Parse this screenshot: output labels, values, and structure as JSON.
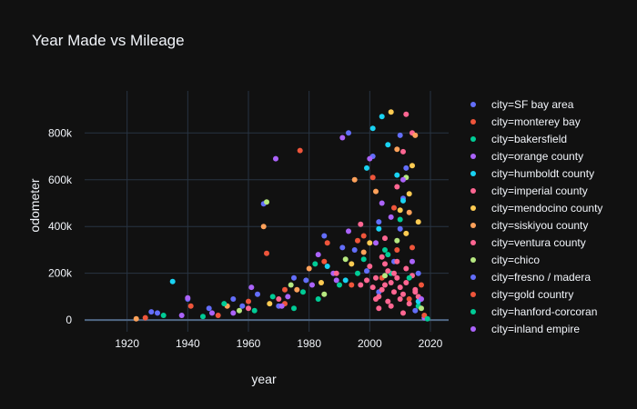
{
  "chart_data": {
    "type": "scatter",
    "title": "Year Made vs Mileage",
    "xlabel": "year",
    "ylabel": "odometer",
    "xlim": [
      1906,
      2026
    ],
    "ylim": [
      -50000,
      980000
    ],
    "x_ticks": [
      1920,
      1940,
      1960,
      1980,
      2000,
      2020
    ],
    "x_tick_labels": [
      "1920",
      "1940",
      "1960",
      "1980",
      "2000",
      "2020"
    ],
    "y_ticks": [
      0,
      200000,
      400000,
      600000,
      800000
    ],
    "y_tick_labels": [
      "0",
      "200k",
      "400k",
      "600k",
      "800k"
    ],
    "grid": true,
    "legend_position": "right",
    "series": [
      {
        "name": "city=SF bay area",
        "color": "#636efa",
        "points": [
          [
            1965,
            497000
          ],
          [
            1993,
            800000
          ],
          [
            2001,
            700000
          ],
          [
            2010,
            790000
          ],
          [
            2012,
            650000
          ],
          [
            1985,
            360000
          ],
          [
            1975,
            180000
          ],
          [
            1958,
            60000
          ],
          [
            2008,
            250000
          ],
          [
            2003,
            120000
          ],
          [
            2015,
            40000
          ],
          [
            1995,
            300000
          ],
          [
            1940,
            90000
          ],
          [
            1930,
            30000
          ],
          [
            1999,
            210000
          ],
          [
            2011,
            520000
          ]
        ]
      },
      {
        "name": "city=monterey bay",
        "color": "#EF553B",
        "points": [
          [
            1977,
            725000
          ],
          [
            1966,
            285000
          ],
          [
            1985,
            250000
          ],
          [
            2001,
            610000
          ],
          [
            2004,
            180000
          ],
          [
            2013,
            90000
          ],
          [
            1972,
            70000
          ],
          [
            1996,
            340000
          ],
          [
            2009,
            300000
          ],
          [
            1950,
            20000
          ],
          [
            2017,
            150000
          ]
        ]
      },
      {
        "name": "city=bakersfield",
        "color": "#00cc96",
        "points": [
          [
            2005,
            300000
          ],
          [
            1990,
            150000
          ],
          [
            1962,
            40000
          ],
          [
            2010,
            430000
          ],
          [
            1978,
            120000
          ],
          [
            1945,
            15000
          ],
          [
            2016,
            60000
          ],
          [
            1998,
            260000
          ],
          [
            2007,
            200000
          ],
          [
            1983,
            90000
          ]
        ]
      },
      {
        "name": "city=orange county",
        "color": "#ab63fa",
        "points": [
          [
            1969,
            690000
          ],
          [
            1991,
            780000
          ],
          [
            2000,
            690000
          ],
          [
            2007,
            440000
          ],
          [
            1988,
            200000
          ],
          [
            1973,
            100000
          ],
          [
            1955,
            30000
          ],
          [
            2014,
            250000
          ],
          [
            2002,
            330000
          ],
          [
            1981,
            150000
          ],
          [
            1938,
            20000
          ],
          [
            2018,
            10000
          ]
        ]
      },
      {
        "name": "city=humboldt county",
        "color": "#19d3f3",
        "points": [
          [
            2004,
            870000
          ],
          [
            2006,
            750000
          ],
          [
            2001,
            820000
          ],
          [
            1999,
            650000
          ],
          [
            2011,
            510000
          ],
          [
            1935,
            165000
          ],
          [
            1986,
            230000
          ],
          [
            2009,
            620000
          ],
          [
            2003,
            390000
          ],
          [
            1992,
            170000
          ],
          [
            2016,
            80000
          ]
        ]
      },
      {
        "name": "city=imperial county",
        "color": "#FF6692",
        "points": [
          [
            2012,
            880000
          ],
          [
            2014,
            800000
          ],
          [
            2009,
            570000
          ],
          [
            1997,
            410000
          ],
          [
            2005,
            350000
          ],
          [
            1970,
            90000
          ],
          [
            1960,
            50000
          ],
          [
            2011,
            720000
          ],
          [
            1989,
            200000
          ],
          [
            2015,
            130000
          ]
        ]
      },
      {
        "name": "city=mendocino county",
        "color": "#FECB52",
        "points": [
          [
            2007,
            890000
          ],
          [
            2014,
            660000
          ],
          [
            2013,
            540000
          ],
          [
            2010,
            470000
          ],
          [
            2000,
            330000
          ],
          [
            1984,
            160000
          ],
          [
            1967,
            70000
          ],
          [
            2016,
            420000
          ],
          [
            1994,
            240000
          ],
          [
            2012,
            370000
          ]
        ]
      },
      {
        "name": "city=siskiyou county",
        "color": "#FFA15A",
        "points": [
          [
            1923,
            5000
          ],
          [
            1995,
            600000
          ],
          [
            2015,
            790000
          ],
          [
            1965,
            400000
          ],
          [
            2009,
            730000
          ],
          [
            2002,
            550000
          ],
          [
            1980,
            220000
          ],
          [
            1976,
            130000
          ],
          [
            1953,
            60000
          ],
          [
            2013,
            460000
          ],
          [
            1998,
            290000
          ]
        ]
      },
      {
        "name": "city=ventura county",
        "color": "#FF6692",
        "points": [
          [
            2005,
            150000
          ],
          [
            2008,
            120000
          ],
          [
            2002,
            180000
          ],
          [
            2010,
            90000
          ],
          [
            2006,
            210000
          ],
          [
            2003,
            100000
          ],
          [
            2012,
            160000
          ],
          [
            2000,
            230000
          ],
          [
            2007,
            60000
          ],
          [
            2009,
            250000
          ],
          [
            2004,
            130000
          ],
          [
            2011,
            110000
          ],
          [
            1999,
            170000
          ],
          [
            2013,
            70000
          ],
          [
            2001,
            140000
          ],
          [
            2014,
            190000
          ],
          [
            2006,
            80000
          ],
          [
            2008,
            200000
          ],
          [
            2005,
            240000
          ],
          [
            2010,
            140000
          ],
          [
            2003,
            50000
          ],
          [
            2012,
            220000
          ],
          [
            2002,
            90000
          ],
          [
            2015,
            120000
          ],
          [
            1997,
            150000
          ],
          [
            2009,
            180000
          ],
          [
            2004,
            270000
          ],
          [
            2011,
            30000
          ],
          [
            2007,
            160000
          ],
          [
            2016,
            100000
          ]
        ]
      },
      {
        "name": "city=chico",
        "color": "#B6E880",
        "points": [
          [
            1966,
            505000
          ],
          [
            2012,
            610000
          ],
          [
            1974,
            150000
          ],
          [
            1992,
            260000
          ],
          [
            2005,
            190000
          ],
          [
            1957,
            40000
          ],
          [
            2009,
            340000
          ],
          [
            1985,
            110000
          ],
          [
            2017,
            50000
          ]
        ]
      },
      {
        "name": "city=fresno / madera",
        "color": "#636efa",
        "points": [
          [
            1928,
            35000
          ],
          [
            1947,
            50000
          ],
          [
            1963,
            110000
          ],
          [
            1979,
            170000
          ],
          [
            1991,
            310000
          ],
          [
            2003,
            420000
          ],
          [
            2010,
            390000
          ],
          [
            2016,
            200000
          ],
          [
            1970,
            60000
          ],
          [
            1955,
            90000
          ]
        ]
      },
      {
        "name": "city=gold country",
        "color": "#EF553B",
        "points": [
          [
            1926,
            10000
          ],
          [
            1941,
            60000
          ],
          [
            1972,
            130000
          ],
          [
            1986,
            330000
          ],
          [
            1998,
            360000
          ],
          [
            2008,
            480000
          ],
          [
            2014,
            310000
          ],
          [
            1960,
            80000
          ],
          [
            1994,
            150000
          ],
          [
            2018,
            20000
          ]
        ]
      },
      {
        "name": "city=hanford-corcoran",
        "color": "#00cc96",
        "points": [
          [
            1932,
            20000
          ],
          [
            1952,
            70000
          ],
          [
            1968,
            100000
          ],
          [
            1982,
            240000
          ],
          [
            1996,
            200000
          ],
          [
            2006,
            280000
          ],
          [
            2013,
            180000
          ],
          [
            2019,
            5000
          ],
          [
            1975,
            50000
          ]
        ]
      },
      {
        "name": "city=inland empire",
        "color": "#ab63fa",
        "points": [
          [
            1940,
            95000
          ],
          [
            1948,
            30000
          ],
          [
            1961,
            140000
          ],
          [
            1983,
            280000
          ],
          [
            1993,
            380000
          ],
          [
            2004,
            500000
          ],
          [
            2011,
            600000
          ],
          [
            2017,
            90000
          ],
          [
            1971,
            60000
          ],
          [
            1989,
            170000
          ]
        ]
      }
    ]
  }
}
